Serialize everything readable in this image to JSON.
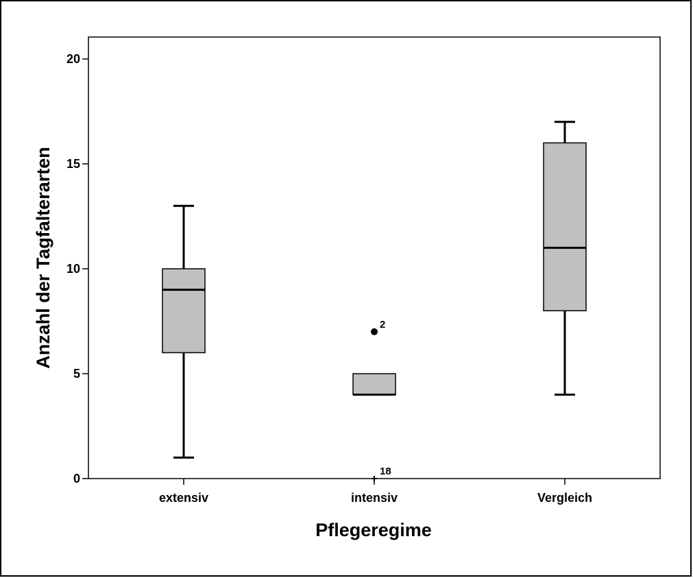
{
  "chart_data": {
    "type": "box",
    "xlabel": "Pflegeregime",
    "ylabel": "Anzahl der Tagfalterarten",
    "ylim": [
      0,
      21
    ],
    "yticks": [
      0,
      5,
      10,
      15,
      20
    ],
    "categories": [
      "extensiv",
      "intensiv",
      "Vergleich"
    ],
    "box_color": "#c0c0c0",
    "groups": [
      {
        "category": "extensiv",
        "min": 1,
        "q1": 6,
        "median": 9,
        "q3": 10,
        "max": 13,
        "outliers": []
      },
      {
        "category": "intensiv",
        "min": 4,
        "q1": 4,
        "median": 4,
        "q3": 5,
        "max": 5,
        "outliers": [
          {
            "value": 7,
            "label": "2",
            "marker": "circle"
          },
          {
            "value": 0,
            "label": "18",
            "marker": "cross"
          }
        ]
      },
      {
        "category": "Vergleich",
        "min": 4,
        "q1": 8,
        "median": 11,
        "q3": 16,
        "max": 17,
        "outliers": []
      }
    ]
  }
}
